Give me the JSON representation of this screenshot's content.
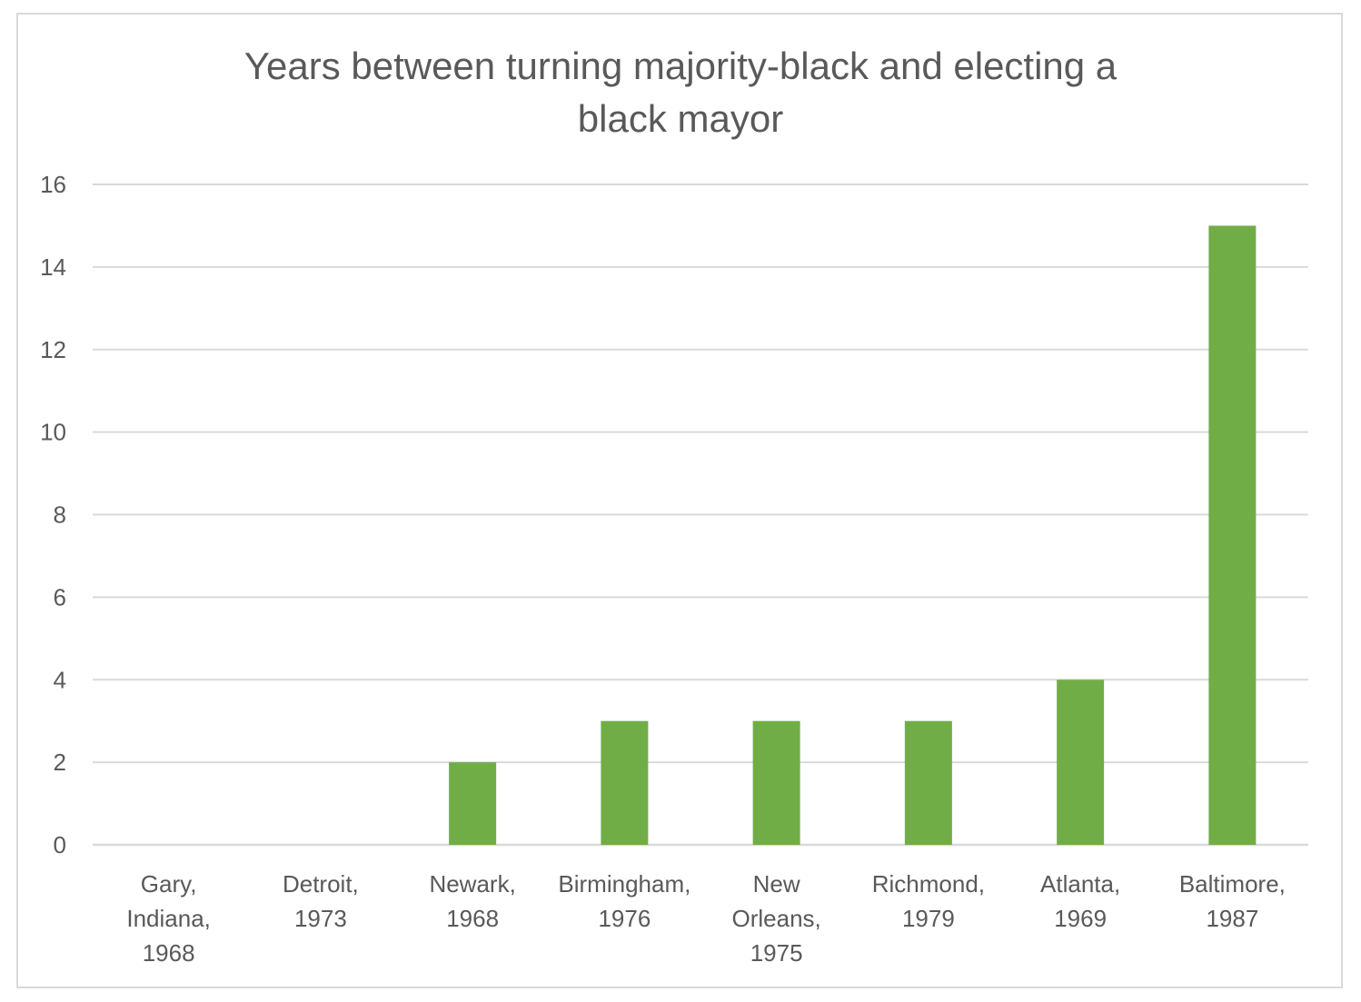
{
  "chart_data": {
    "type": "bar",
    "title_lines": [
      "Years between turning majority-black and electing a",
      "black mayor"
    ],
    "categories": [
      [
        "Gary,",
        "Indiana,",
        "1968"
      ],
      [
        "Detroit,",
        "1973"
      ],
      [
        "Newark,",
        "1968"
      ],
      [
        "Birmingham,",
        "1976"
      ],
      [
        "New",
        "Orleans,",
        "1975"
      ],
      [
        "Richmond,",
        "1979"
      ],
      [
        "Atlanta,",
        "1969"
      ],
      [
        "Baltimore,",
        "1987"
      ]
    ],
    "values": [
      0,
      0,
      2,
      3,
      3,
      3,
      4,
      15
    ],
    "ylim": [
      0,
      16
    ],
    "yticks": [
      0,
      2,
      4,
      6,
      8,
      10,
      12,
      14,
      16
    ],
    "grid": true,
    "bar_color": "#70ad47",
    "grid_color": "#d9d9d9"
  }
}
